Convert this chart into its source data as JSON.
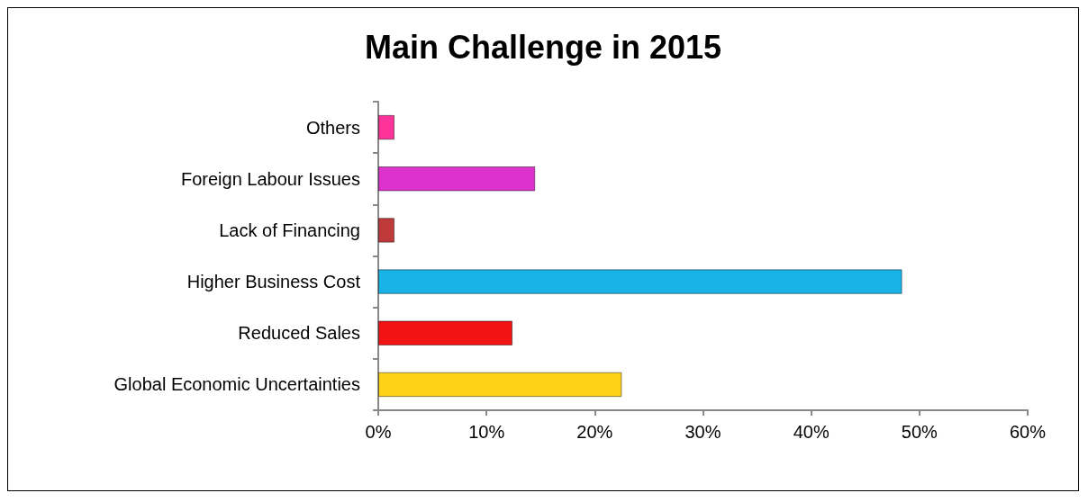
{
  "chart_data": {
    "type": "bar",
    "orientation": "horizontal",
    "title": "Main Challenge in 2015",
    "categories": [
      "Others",
      "Foreign Labour Issues",
      "Lack of Financing",
      "Higher Business Cost",
      "Reduced Sales",
      "Global Economic Uncertainties"
    ],
    "values": [
      1.5,
      14.5,
      1.5,
      48.4,
      12.4,
      22.5
    ],
    "colors": [
      "#ff3399",
      "#dd33cc",
      "#c0393b",
      "#18b4e8",
      "#f01414",
      "#ffd21a"
    ],
    "xlim": [
      0,
      60
    ],
    "xticks": [
      {
        "value": 0,
        "label": "0%"
      },
      {
        "value": 10,
        "label": "10%"
      },
      {
        "value": 20,
        "label": "20%"
      },
      {
        "value": 30,
        "label": "30%"
      },
      {
        "value": 40,
        "label": "40%"
      },
      {
        "value": 50,
        "label": "50%"
      },
      {
        "value": 60,
        "label": "60%"
      }
    ],
    "grid": false
  }
}
